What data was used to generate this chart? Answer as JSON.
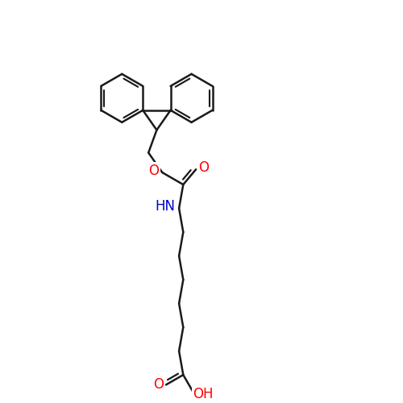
{
  "bg_color": "#ffffff",
  "bond_color": "#1a1a1a",
  "bond_width": 1.8,
  "atom_colors": {
    "O": "#ff0000",
    "N": "#0000cd",
    "C": "#1a1a1a"
  },
  "font_size": 12
}
